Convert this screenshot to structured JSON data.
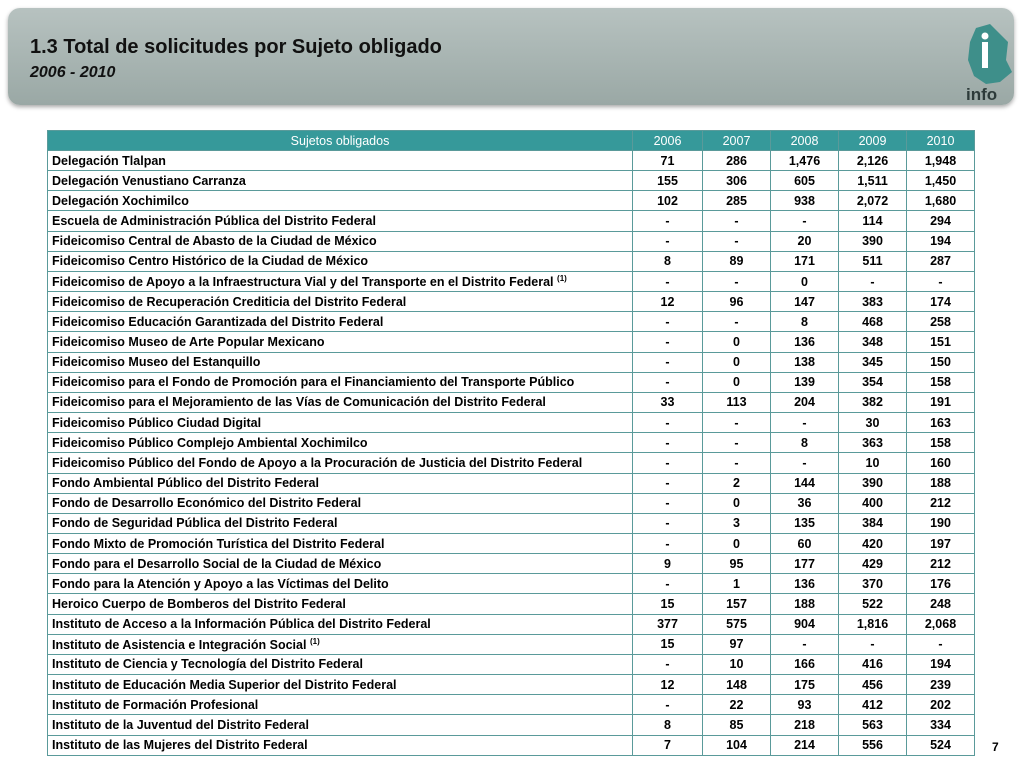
{
  "header": {
    "title": "1.3 Total de solicitudes por Sujeto obligado",
    "subtitle": "2006 - 2010",
    "logo": "info"
  },
  "table": {
    "columns": [
      "Sujetos obligados",
      "2006",
      "2007",
      "2008",
      "2009",
      "2010"
    ],
    "rows": [
      {
        "name": "Delegación Tlalpan",
        "values": [
          "71",
          "286",
          "1,476",
          "2,126",
          "1,948"
        ]
      },
      {
        "name": "Delegación Venustiano Carranza",
        "values": [
          "155",
          "306",
          "605",
          "1,511",
          "1,450"
        ]
      },
      {
        "name": "Delegación Xochimilco",
        "values": [
          "102",
          "285",
          "938",
          "2,072",
          "1,680"
        ]
      },
      {
        "name": "Escuela de Administración Pública del Distrito Federal",
        "values": [
          "-",
          "-",
          "-",
          "114",
          "294"
        ]
      },
      {
        "name": "Fideicomiso Central de Abasto de la Ciudad de México",
        "values": [
          "-",
          "-",
          "20",
          "390",
          "194"
        ]
      },
      {
        "name": "Fideicomiso Centro Histórico de la Ciudad de México",
        "values": [
          "8",
          "89",
          "171",
          "511",
          "287"
        ]
      },
      {
        "name": "Fideicomiso de Apoyo a la Infraestructura Vial y del Transporte en el Distrito Federal",
        "note": "(1)",
        "values": [
          "-",
          "-",
          "0",
          "-",
          "-"
        ]
      },
      {
        "name": "Fideicomiso de Recuperación Crediticia del Distrito Federal",
        "values": [
          "12",
          "96",
          "147",
          "383",
          "174"
        ]
      },
      {
        "name": "Fideicomiso Educación Garantizada del Distrito Federal",
        "values": [
          "-",
          "-",
          "8",
          "468",
          "258"
        ]
      },
      {
        "name": "Fideicomiso Museo de Arte Popular Mexicano",
        "values": [
          "-",
          "0",
          "136",
          "348",
          "151"
        ]
      },
      {
        "name": "Fideicomiso Museo del Estanquillo",
        "values": [
          "-",
          "0",
          "138",
          "345",
          "150"
        ]
      },
      {
        "name": "Fideicomiso para el Fondo de Promoción para el Financiamiento del Transporte Público",
        "values": [
          "-",
          "0",
          "139",
          "354",
          "158"
        ]
      },
      {
        "name": "Fideicomiso para el Mejoramiento de las Vías de Comunicación del Distrito Federal",
        "values": [
          "33",
          "113",
          "204",
          "382",
          "191"
        ]
      },
      {
        "name": "Fideicomiso Público Ciudad Digital",
        "values": [
          "-",
          "-",
          "-",
          "30",
          "163"
        ]
      },
      {
        "name": "Fideicomiso Público Complejo Ambiental Xochimilco",
        "values": [
          "-",
          "-",
          "8",
          "363",
          "158"
        ]
      },
      {
        "name": "Fideicomiso Público del Fondo de Apoyo a la Procuración de Justicia del Distrito Federal",
        "values": [
          "-",
          "-",
          "-",
          "10",
          "160"
        ]
      },
      {
        "name": "Fondo Ambiental Público del Distrito Federal",
        "values": [
          "-",
          "2",
          "144",
          "390",
          "188"
        ]
      },
      {
        "name": "Fondo de Desarrollo Económico del Distrito Federal",
        "values": [
          "-",
          "0",
          "36",
          "400",
          "212"
        ]
      },
      {
        "name": "Fondo de Seguridad Pública del Distrito Federal",
        "values": [
          "-",
          "3",
          "135",
          "384",
          "190"
        ]
      },
      {
        "name": "Fondo Mixto de Promoción Turística del Distrito Federal",
        "values": [
          "-",
          "0",
          "60",
          "420",
          "197"
        ]
      },
      {
        "name": "Fondo para el Desarrollo Social de la Ciudad de México",
        "values": [
          "9",
          "95",
          "177",
          "429",
          "212"
        ]
      },
      {
        "name": "Fondo para la Atención y Apoyo a las Víctimas del Delito",
        "values": [
          "-",
          "1",
          "136",
          "370",
          "176"
        ]
      },
      {
        "name": "Heroico Cuerpo de Bomberos del Distrito Federal",
        "values": [
          "15",
          "157",
          "188",
          "522",
          "248"
        ]
      },
      {
        "name": "Instituto de Acceso a la Información Pública del Distrito Federal",
        "values": [
          "377",
          "575",
          "904",
          "1,816",
          "2,068"
        ]
      },
      {
        "name": "Instituto de Asistencia e Integración Social",
        "note": "(1)",
        "values": [
          "15",
          "97",
          "-",
          "-",
          "-"
        ]
      },
      {
        "name": "Instituto de Ciencia y Tecnología del Distrito Federal",
        "values": [
          "-",
          "10",
          "166",
          "416",
          "194"
        ]
      },
      {
        "name": "Instituto de Educación Media Superior del Distrito Federal",
        "values": [
          "12",
          "148",
          "175",
          "456",
          "239"
        ]
      },
      {
        "name": "Instituto de Formación Profesional",
        "values": [
          "-",
          "22",
          "93",
          "412",
          "202"
        ]
      },
      {
        "name": "Instituto de la Juventud del Distrito Federal",
        "values": [
          "8",
          "85",
          "218",
          "563",
          "334"
        ]
      },
      {
        "name": "Instituto de las Mujeres del Distrito Federal",
        "values": [
          "7",
          "104",
          "214",
          "556",
          "524"
        ]
      }
    ]
  },
  "page_number": "7"
}
